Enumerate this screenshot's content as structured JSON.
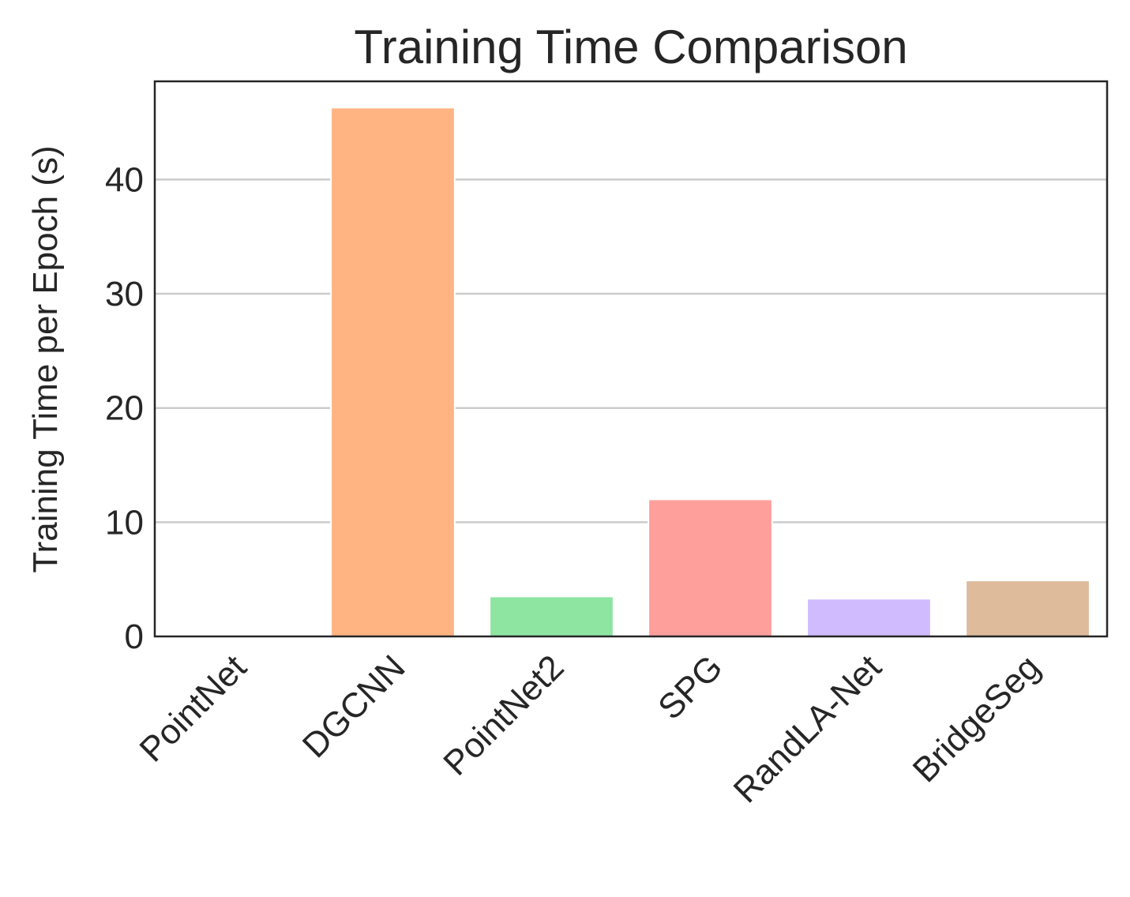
{
  "chart_data": {
    "type": "bar",
    "title": "Training Time Comparison",
    "xlabel": "",
    "ylabel": "Training Time per Epoch (s)",
    "categories": [
      "PointNet",
      "DGCNN",
      "PointNet2",
      "SPG",
      "RandLA-Net",
      "BridgeSeg"
    ],
    "values": [
      0.05,
      46.3,
      3.5,
      12.0,
      3.3,
      4.9
    ],
    "colors": [
      "#a1c9f4",
      "#ffb482",
      "#8de5a1",
      "#ff9f9b",
      "#d0bbff",
      "#debb9b"
    ],
    "yticks": [
      0,
      10,
      20,
      30,
      40
    ],
    "ylim": [
      0,
      48.6
    ],
    "grid": "horizontal",
    "legend": "none"
  }
}
